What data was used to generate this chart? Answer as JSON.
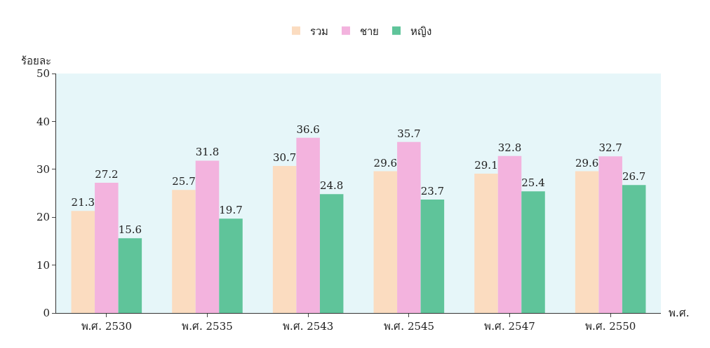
{
  "chart_data": {
    "type": "bar",
    "ylabel": "ร้อยละ",
    "xlabel": "พ.ศ.",
    "categories": [
      "พ.ศ. 2530",
      "พ.ศ. 2535",
      "พ.ศ. 2543",
      "พ.ศ. 2545",
      "พ.ศ. 2547",
      "พ.ศ. 2550"
    ],
    "series": [
      {
        "name": "รวม",
        "color": "#fbdcc0",
        "values": [
          21.3,
          25.7,
          30.7,
          29.6,
          29.1,
          29.6
        ]
      },
      {
        "name": "ชาย",
        "color": "#f3b3de",
        "values": [
          27.2,
          31.8,
          36.6,
          35.7,
          32.8,
          32.7
        ]
      },
      {
        "name": "หญิง",
        "color": "#5fc49a",
        "values": [
          15.6,
          19.7,
          24.8,
          23.7,
          25.4,
          26.7
        ]
      }
    ],
    "ylim": [
      0,
      50
    ],
    "yticks": [
      0,
      10,
      20,
      30,
      40,
      50
    ],
    "grid": false,
    "legend": "top",
    "data_labels": true
  }
}
